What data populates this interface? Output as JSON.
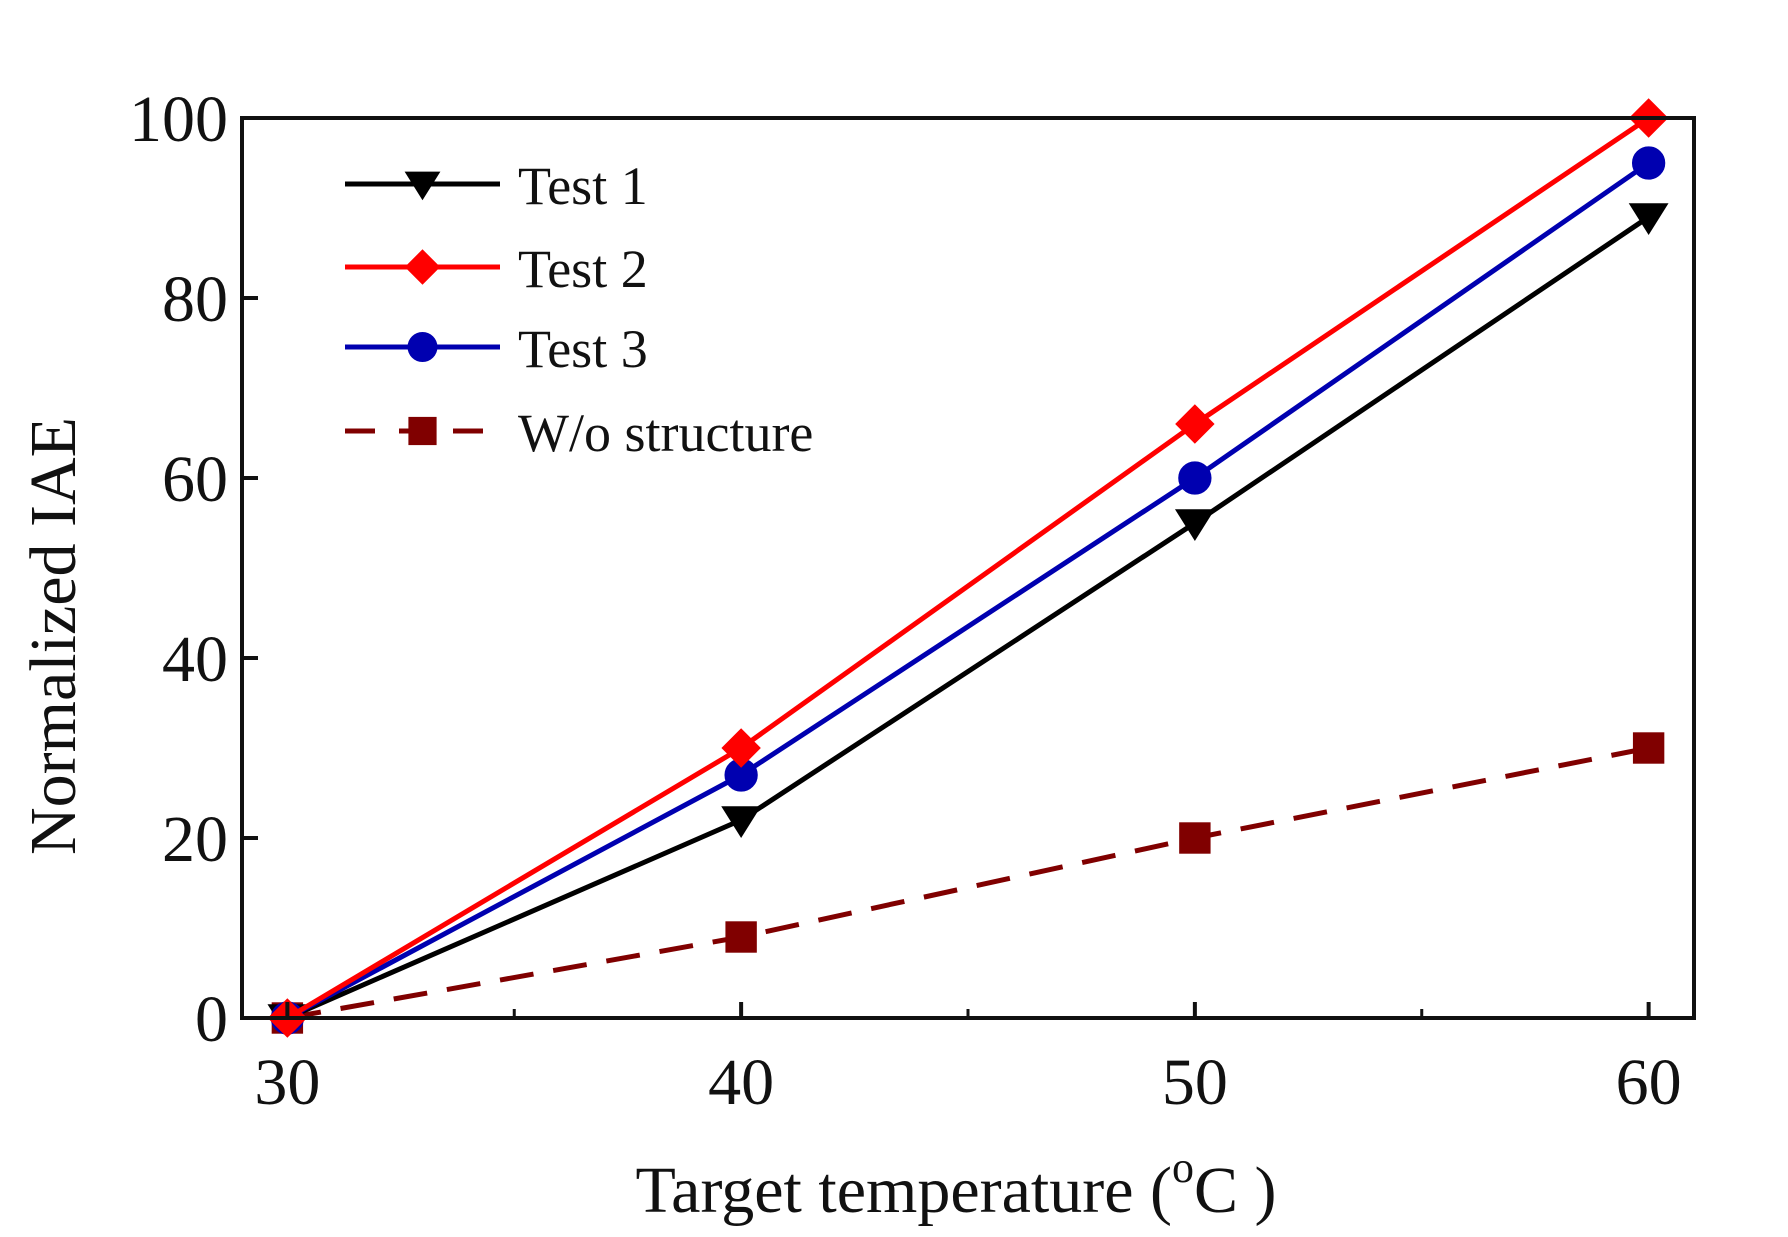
{
  "chart_data": {
    "type": "line",
    "title": "",
    "xlabel": "Target temperature (",
    "xlabel_superscript": "o",
    "xlabel_suffix": "C )",
    "ylabel": "Normalized IAE",
    "x": [
      30,
      40,
      50,
      60
    ],
    "xlim": [
      29,
      61
    ],
    "ylim": [
      0,
      100
    ],
    "x_ticks": [
      30,
      40,
      50,
      60
    ],
    "x_tick_labels": [
      "30",
      "40",
      "50",
      "60"
    ],
    "x_minor_ticks": [
      35,
      45,
      55
    ],
    "y_ticks": [
      0,
      20,
      40,
      60,
      80,
      100
    ],
    "y_tick_labels": [
      "0",
      "20",
      "40",
      "60",
      "80",
      "100"
    ],
    "grid": false,
    "legend_position": "top-left",
    "series": [
      {
        "name": "Test 1",
        "values": [
          0,
          22,
          55,
          89
        ],
        "color": "#000000",
        "marker": "triangle-down",
        "line_style": "solid"
      },
      {
        "name": "Test 2",
        "values": [
          0,
          30,
          66,
          100
        ],
        "color": "#ff0000",
        "marker": "diamond",
        "line_style": "solid"
      },
      {
        "name": "Test 3",
        "values": [
          0,
          27,
          60,
          95
        ],
        "color": "#0000b0",
        "marker": "circle",
        "line_style": "solid"
      },
      {
        "name": "W/o structure",
        "values": [
          0,
          9,
          20,
          30
        ],
        "color": "#800000",
        "marker": "square",
        "line_style": "dashed"
      }
    ]
  }
}
